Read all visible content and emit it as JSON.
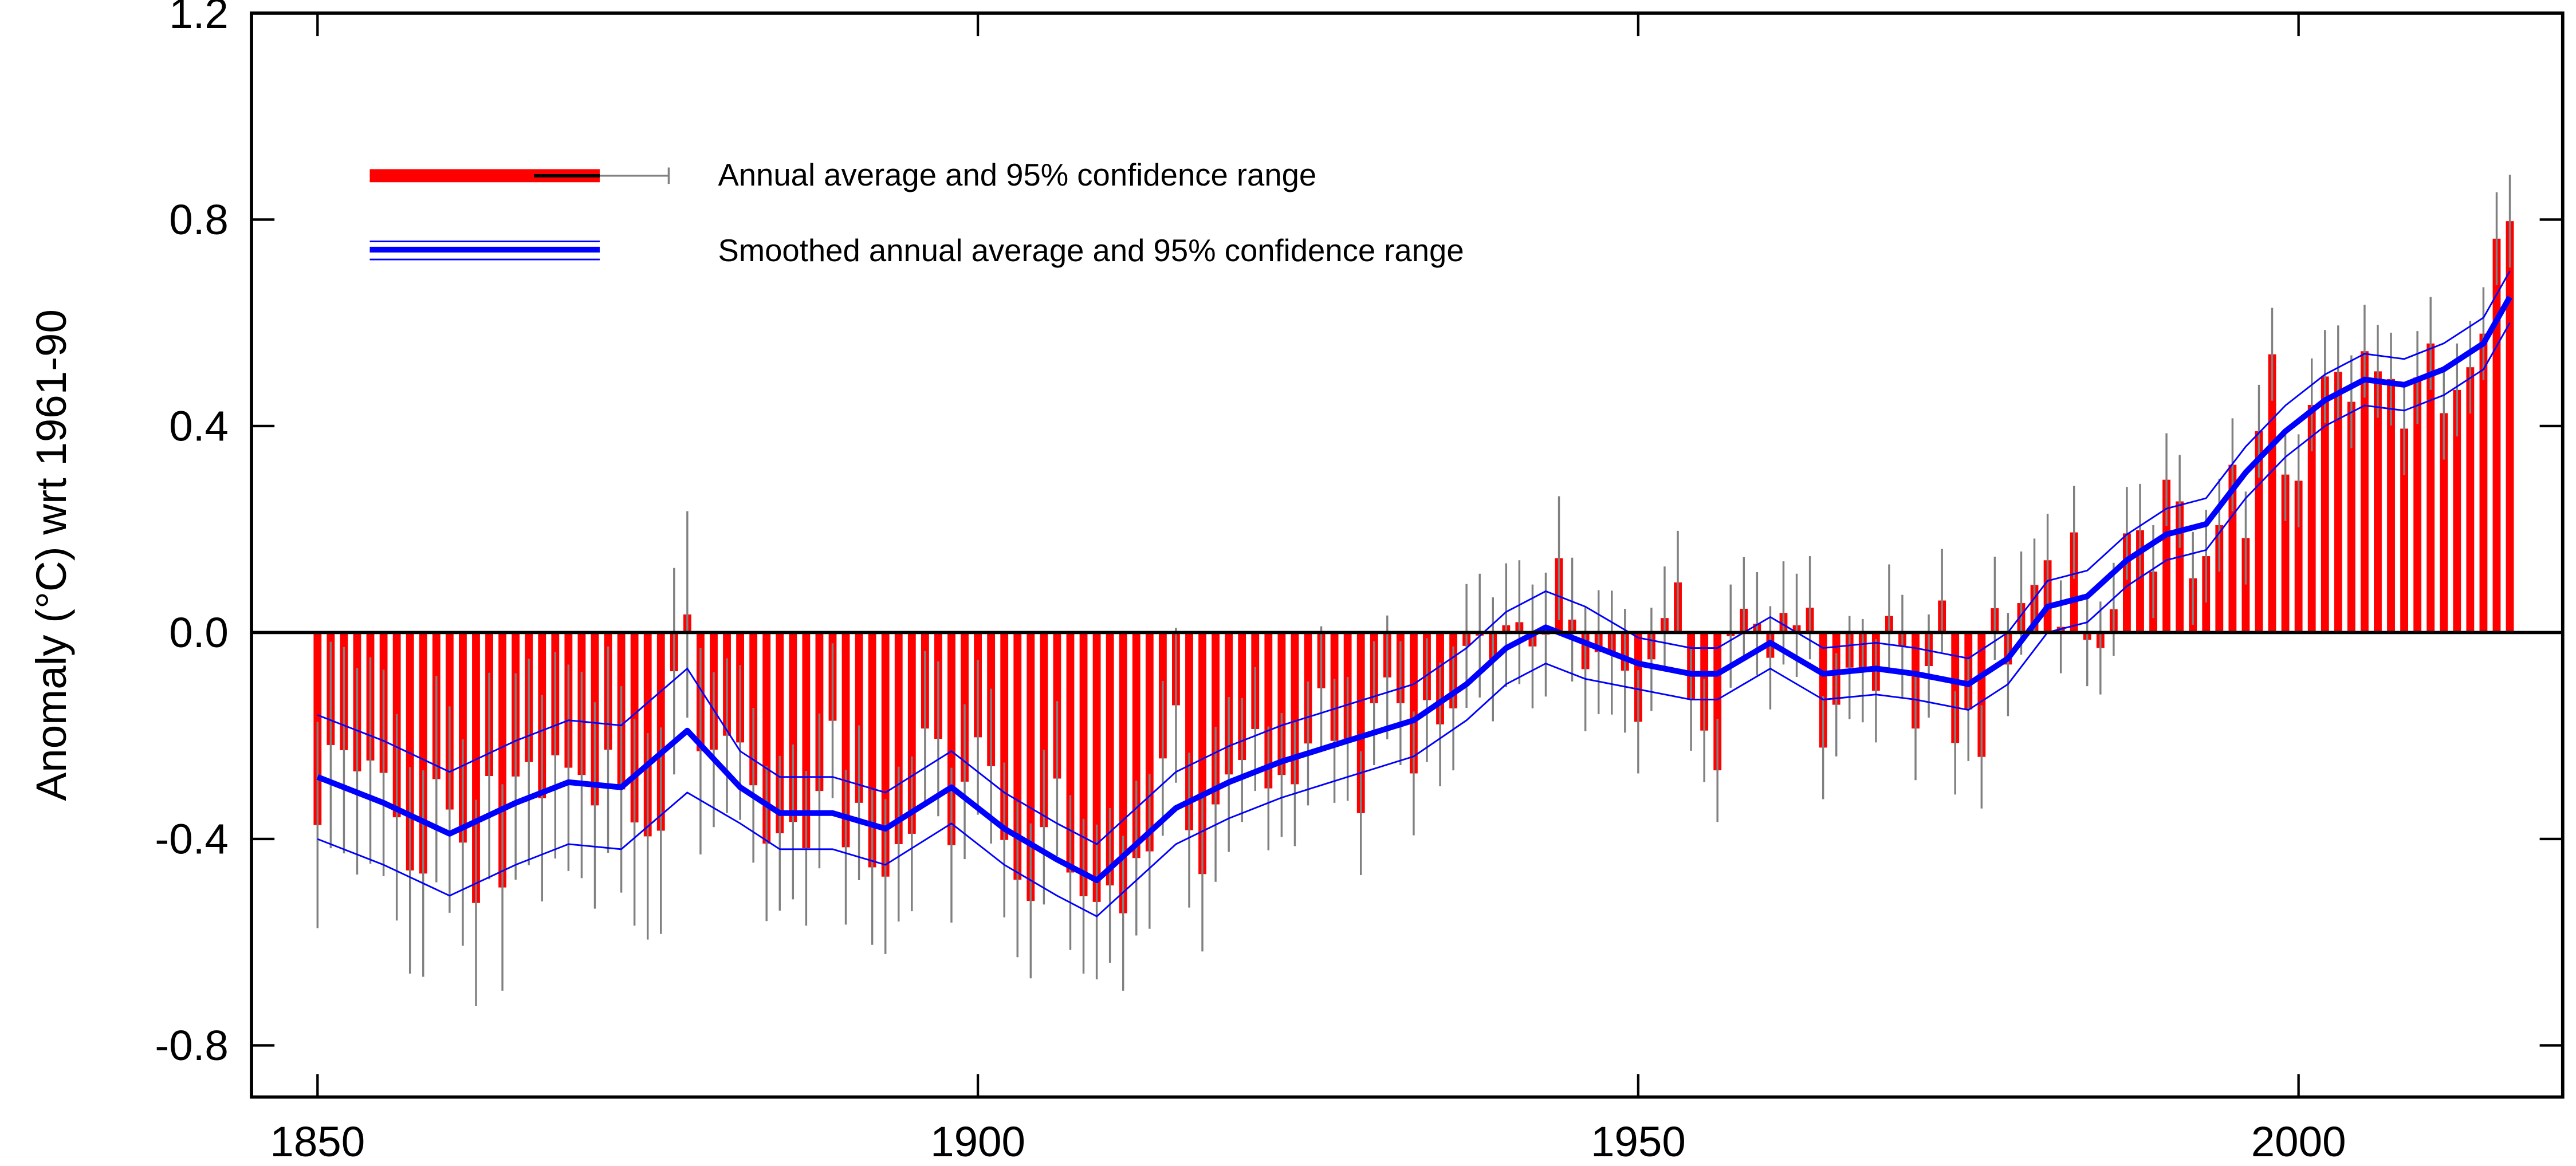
{
  "chart_data": {
    "type": "bar",
    "y_label": "Anomaly (°C) wrt 1961-90",
    "xlim": [
      1845,
      2020
    ],
    "xticks": [
      1850,
      1900,
      1950,
      2000
    ],
    "ylim": [
      -0.9,
      1.2
    ],
    "yticks": [
      {
        "value": -0.8,
        "label": "-0.8"
      },
      {
        "value": -0.4,
        "label": "-0.4"
      },
      {
        "value": 0,
        "label": "0.0"
      },
      {
        "value": 0.4,
        "label": "0.4"
      },
      {
        "value": 0.8,
        "label": "0.8"
      },
      {
        "value": 1.2,
        "label": "1.2"
      }
    ],
    "series": [
      {
        "name": "Annual average and 95% confidence range",
        "color": "#ff0000",
        "error_color": "#808080",
        "x": [
          1850,
          1851,
          1852,
          1853,
          1854,
          1855,
          1856,
          1857,
          1858,
          1859,
          1860,
          1861,
          1862,
          1863,
          1864,
          1865,
          1866,
          1867,
          1868,
          1869,
          1870,
          1871,
          1872,
          1873,
          1874,
          1875,
          1876,
          1877,
          1878,
          1879,
          1880,
          1881,
          1882,
          1883,
          1884,
          1885,
          1886,
          1887,
          1888,
          1889,
          1890,
          1891,
          1892,
          1893,
          1894,
          1895,
          1896,
          1897,
          1898,
          1899,
          1900,
          1901,
          1902,
          1903,
          1904,
          1905,
          1906,
          1907,
          1908,
          1909,
          1910,
          1911,
          1912,
          1913,
          1914,
          1915,
          1916,
          1917,
          1918,
          1919,
          1920,
          1921,
          1922,
          1923,
          1924,
          1925,
          1926,
          1927,
          1928,
          1929,
          1930,
          1931,
          1932,
          1933,
          1934,
          1935,
          1936,
          1937,
          1938,
          1939,
          1940,
          1941,
          1942,
          1943,
          1944,
          1945,
          1946,
          1947,
          1948,
          1949,
          1950,
          1951,
          1952,
          1953,
          1954,
          1955,
          1956,
          1957,
          1958,
          1959,
          1960,
          1961,
          1962,
          1963,
          1964,
          1965,
          1966,
          1967,
          1968,
          1969,
          1970,
          1971,
          1972,
          1973,
          1974,
          1975,
          1976,
          1977,
          1978,
          1979,
          1980,
          1981,
          1982,
          1983,
          1984,
          1985,
          1986,
          1987,
          1988,
          1989,
          1990,
          1991,
          1992,
          1993,
          1994,
          1995,
          1996,
          1997,
          1998,
          1999,
          2000,
          2001,
          2002,
          2003,
          2004,
          2005,
          2006,
          2007,
          2008,
          2009,
          2010,
          2011,
          2012,
          2013,
          2014,
          2015,
          2016
        ],
        "values": [
          -0.373,
          -0.218,
          -0.228,
          -0.269,
          -0.248,
          -0.272,
          -0.358,
          -0.461,
          -0.467,
          -0.284,
          -0.343,
          -0.407,
          -0.524,
          -0.278,
          -0.494,
          -0.279,
          -0.251,
          -0.321,
          -0.238,
          -0.262,
          -0.276,
          -0.335,
          -0.227,
          -0.304,
          -0.368,
          -0.395,
          -0.384,
          -0.075,
          0.035,
          -0.23,
          -0.227,
          -0.2,
          -0.213,
          -0.296,
          -0.409,
          -0.389,
          -0.367,
          -0.418,
          -0.307,
          -0.171,
          -0.416,
          -0.33,
          -0.455,
          -0.473,
          -0.41,
          -0.39,
          -0.186,
          -0.206,
          -0.412,
          -0.289,
          -0.203,
          -0.259,
          -0.402,
          -0.479,
          -0.52,
          -0.377,
          -0.283,
          -0.465,
          -0.511,
          -0.522,
          -0.49,
          -0.544,
          -0.437,
          -0.424,
          -0.244,
          -0.141,
          -0.383,
          -0.468,
          -0.333,
          -0.275,
          -0.247,
          -0.187,
          -0.302,
          -0.276,
          -0.294,
          -0.215,
          -0.108,
          -0.21,
          -0.206,
          -0.35,
          -0.137,
          -0.087,
          -0.137,
          -0.273,
          -0.131,
          -0.178,
          -0.147,
          -0.026,
          -0.006,
          -0.052,
          0.014,
          0.02,
          -0.027,
          -0.004,
          0.144,
          0.025,
          -0.071,
          -0.038,
          -0.039,
          -0.074,
          -0.173,
          -0.052,
          0.028,
          0.097,
          -0.129,
          -0.19,
          -0.267,
          -0.007,
          0.046,
          0.017,
          -0.049,
          0.038,
          0.014,
          0.048,
          -0.223,
          -0.14,
          -0.068,
          -0.074,
          -0.113,
          0.032,
          -0.027,
          -0.186,
          -0.065,
          0.062,
          -0.214,
          -0.149,
          -0.241,
          0.047,
          -0.062,
          0.057,
          0.092,
          0.14,
          0.011,
          0.194,
          -0.014,
          -0.03,
          0.045,
          0.192,
          0.198,
          0.118,
          0.296,
          0.254,
          0.105,
          0.148,
          0.208,
          0.325,
          0.183,
          0.39,
          0.539,
          0.306,
          0.294,
          0.441,
          0.496,
          0.505,
          0.447,
          0.545,
          0.506,
          0.491,
          0.395,
          0.494,
          0.56,
          0.425,
          0.47,
          0.514,
          0.579,
          0.763,
          0.797
        ],
        "errors": [
          0.2,
          0.2,
          0.2,
          0.2,
          0.2,
          0.2,
          0.2,
          0.2,
          0.2,
          0.2,
          0.2,
          0.2,
          0.2,
          0.2,
          0.2,
          0.2,
          0.2,
          0.2,
          0.2,
          0.2,
          0.2,
          0.2,
          0.2,
          0.2,
          0.2,
          0.2,
          0.2,
          0.2,
          0.2,
          0.2,
          0.15,
          0.15,
          0.15,
          0.15,
          0.15,
          0.15,
          0.15,
          0.15,
          0.15,
          0.15,
          0.15,
          0.15,
          0.15,
          0.15,
          0.15,
          0.15,
          0.15,
          0.15,
          0.15,
          0.15,
          0.15,
          0.15,
          0.15,
          0.15,
          0.15,
          0.15,
          0.15,
          0.15,
          0.15,
          0.15,
          0.15,
          0.15,
          0.15,
          0.15,
          0.15,
          0.15,
          0.15,
          0.15,
          0.15,
          0.15,
          0.12,
          0.12,
          0.12,
          0.12,
          0.12,
          0.12,
          0.12,
          0.12,
          0.12,
          0.12,
          0.12,
          0.12,
          0.12,
          0.12,
          0.12,
          0.12,
          0.12,
          0.12,
          0.12,
          0.12,
          0.12,
          0.12,
          0.12,
          0.12,
          0.12,
          0.12,
          0.12,
          0.12,
          0.12,
          0.12,
          0.1,
          0.1,
          0.1,
          0.1,
          0.1,
          0.1,
          0.1,
          0.1,
          0.1,
          0.1,
          0.1,
          0.1,
          0.1,
          0.1,
          0.1,
          0.1,
          0.1,
          0.1,
          0.1,
          0.1,
          0.1,
          0.1,
          0.1,
          0.1,
          0.1,
          0.1,
          0.1,
          0.1,
          0.1,
          0.1,
          0.09,
          0.09,
          0.09,
          0.09,
          0.09,
          0.09,
          0.09,
          0.09,
          0.09,
          0.09,
          0.09,
          0.09,
          0.09,
          0.09,
          0.09,
          0.09,
          0.09,
          0.09,
          0.09,
          0.09,
          0.09,
          0.09,
          0.09,
          0.09,
          0.09,
          0.09,
          0.09,
          0.09,
          0.09,
          0.09,
          0.09,
          0.09,
          0.09,
          0.09,
          0.09,
          0.09,
          0.09
        ]
      },
      {
        "name": "Smoothed annual average and 95% confidence range",
        "color": "#0000ff",
        "x": [
          1850,
          1855,
          1860,
          1865,
          1869,
          1873,
          1878,
          1882,
          1885,
          1889,
          1893,
          1898,
          1902,
          1906,
          1909,
          1912,
          1915,
          1919,
          1923,
          1928,
          1933,
          1937,
          1940,
          1943,
          1946,
          1950,
          1954,
          1956,
          1960,
          1964,
          1968,
          1971,
          1975,
          1978,
          1981,
          1984,
          1987,
          1990,
          1993,
          1996,
          1999,
          2002,
          2005,
          2008,
          2011,
          2014,
          2016
        ],
        "values": [
          -0.28,
          -0.33,
          -0.39,
          -0.33,
          -0.29,
          -0.3,
          -0.19,
          -0.3,
          -0.35,
          -0.35,
          -0.38,
          -0.3,
          -0.38,
          -0.44,
          -0.48,
          -0.41,
          -0.34,
          -0.29,
          -0.25,
          -0.21,
          -0.17,
          -0.1,
          -0.03,
          0.01,
          -0.02,
          -0.06,
          -0.08,
          -0.08,
          -0.02,
          -0.08,
          -0.07,
          -0.08,
          -0.1,
          -0.05,
          0.05,
          0.07,
          0.14,
          0.19,
          0.21,
          0.31,
          0.39,
          0.45,
          0.49,
          0.48,
          0.51,
          0.56,
          0.65
        ],
        "errors": [
          0.12,
          0.12,
          0.12,
          0.12,
          0.12,
          0.12,
          0.12,
          0.07,
          0.07,
          0.07,
          0.07,
          0.07,
          0.07,
          0.07,
          0.07,
          0.07,
          0.07,
          0.07,
          0.07,
          0.07,
          0.07,
          0.07,
          0.07,
          0.07,
          0.07,
          0.05,
          0.05,
          0.05,
          0.05,
          0.05,
          0.05,
          0.05,
          0.05,
          0.05,
          0.05,
          0.05,
          0.05,
          0.05,
          0.05,
          0.05,
          0.05,
          0.05,
          0.05,
          0.05,
          0.05,
          0.05,
          0.05
        ]
      }
    ]
  }
}
